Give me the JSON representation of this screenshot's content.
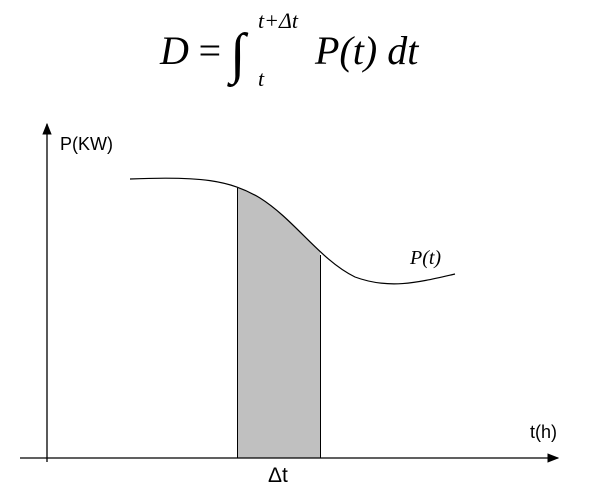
{
  "formula": {
    "lhs": "D",
    "equals": "=",
    "integral": "∫",
    "upper": "t+Δt",
    "lower": "t",
    "integrand": "P(t) dt"
  },
  "axes": {
    "y_label": "P(KW)",
    "x_label": "t(h)"
  },
  "curve": {
    "label": "P(t)"
  },
  "interval": {
    "label": "Δt"
  }
}
